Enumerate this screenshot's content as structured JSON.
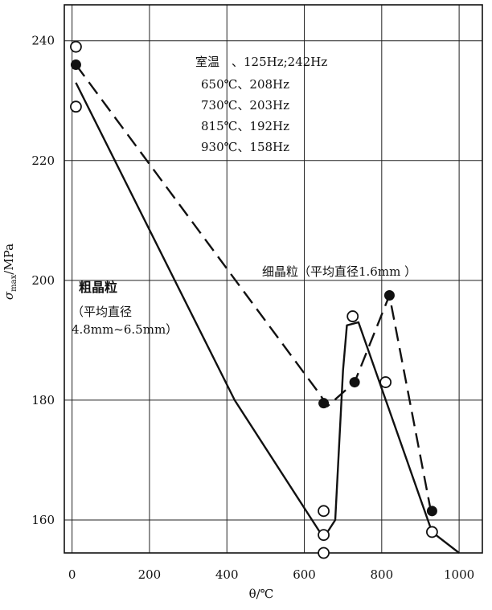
{
  "chart_data": {
    "type": "line",
    "xlabel": "θ/℃",
    "ylabel": "σmax/MPa",
    "ylabel_main": "σ",
    "ylabel_sub": "max",
    "ylabel_unit": "/MPa",
    "xlim": [
      -20,
      1060
    ],
    "ylim": [
      154.5,
      246
    ],
    "x_ticks": [
      0,
      200,
      400,
      600,
      800,
      1000
    ],
    "y_ticks": [
      160,
      180,
      200,
      220,
      240
    ],
    "grid": true,
    "legend_lines": [
      "室温　、125Hz;242Hz",
      "650℃、208Hz",
      "730℃、203Hz",
      "815℃、192Hz",
      "930℃、158Hz"
    ],
    "annotations": {
      "coarse_title": "粗晶粒",
      "coarse_sub1": "（平均直径",
      "coarse_sub2": "4.8mm~6.5mm）",
      "fine_label": "细晶粒（平均直径1.6mm ）"
    },
    "series": [
      {
        "line": "dashed",
        "marker": "filled",
        "values": [
          [
            10,
            236
          ],
          [
            650,
            179.5
          ],
          [
            730,
            183
          ],
          [
            820,
            197.5
          ],
          [
            930,
            161.5
          ]
        ],
        "line_points": [
          [
            10,
            236
          ],
          [
            640,
            181
          ],
          [
            660,
            179
          ],
          [
            730,
            183
          ],
          [
            820,
            197.5
          ],
          [
            930,
            160.5
          ]
        ]
      },
      {
        "line": "solid",
        "marker": "none",
        "line_points": [
          [
            10,
            233
          ],
          [
            420,
            180
          ],
          [
            650,
            157
          ],
          [
            680,
            160
          ],
          [
            700,
            185
          ],
          [
            710,
            192.5
          ],
          [
            740,
            193
          ],
          [
            930,
            158
          ],
          [
            1000,
            154.5
          ]
        ]
      }
    ],
    "open_markers": [
      [
        10,
        239
      ],
      [
        10,
        229
      ],
      [
        650,
        161.5
      ],
      [
        650,
        157.5
      ],
      [
        650,
        154.5
      ],
      [
        725,
        194
      ],
      [
        810,
        183
      ],
      [
        930,
        158
      ]
    ]
  }
}
